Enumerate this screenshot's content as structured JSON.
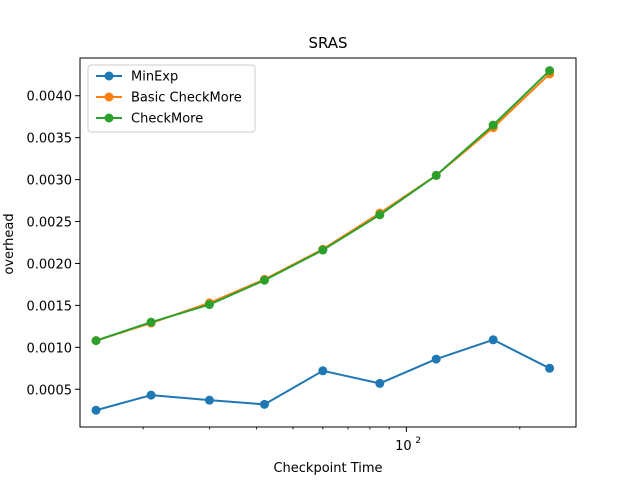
{
  "chart_data": {
    "type": "line",
    "title": "SRAS",
    "xlabel": "Checkpoint Time",
    "ylabel": "overhead",
    "xscale": "log",
    "xlim": [
      13.6,
      282
    ],
    "ylim": [
      5e-05,
      0.00445
    ],
    "x": [
      15,
      21,
      30,
      42,
      60,
      85,
      120,
      170,
      240
    ],
    "xticks": [
      {
        "value": 100,
        "base": "10",
        "exp": "2"
      }
    ],
    "xminor_ticks": [
      20,
      30,
      40,
      50,
      60,
      70,
      80,
      90,
      200
    ],
    "yticks": [
      {
        "value": 0.0005,
        "label": "0.0005"
      },
      {
        "value": 0.001,
        "label": "0.0010"
      },
      {
        "value": 0.0015,
        "label": "0.0015"
      },
      {
        "value": 0.002,
        "label": "0.0020"
      },
      {
        "value": 0.0025,
        "label": "0.0025"
      },
      {
        "value": 0.003,
        "label": "0.0030"
      },
      {
        "value": 0.0035,
        "label": "0.0035"
      },
      {
        "value": 0.004,
        "label": "0.0040"
      }
    ],
    "series": [
      {
        "name": "MinExp",
        "color": "#1f77b4",
        "values": [
          0.00025,
          0.00043,
          0.00037,
          0.00032,
          0.00072,
          0.00057,
          0.00086,
          0.00109,
          0.00075
        ]
      },
      {
        "name": "Basic CheckMore",
        "color": "#ff7f0e",
        "values": [
          0.00108,
          0.00129,
          0.00153,
          0.00181,
          0.00217,
          0.0026,
          0.00305,
          0.00362,
          0.00426
        ]
      },
      {
        "name": "CheckMore",
        "color": "#2ca02c",
        "values": [
          0.00108,
          0.0013,
          0.00151,
          0.0018,
          0.00216,
          0.00258,
          0.00305,
          0.00365,
          0.0043
        ]
      }
    ],
    "legend_position": "upper-left",
    "grid": false
  }
}
